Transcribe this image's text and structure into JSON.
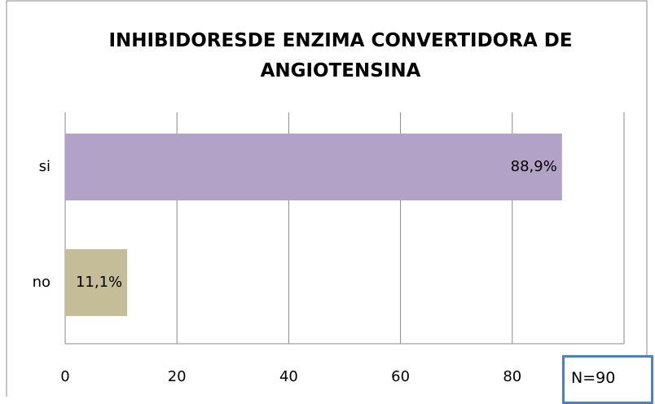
{
  "chart_data": {
    "type": "hbar",
    "title": "INHIBIDORESDE ENZIMA CONVERTIDORA DE ANGIOTENSINA",
    "categories": [
      "si",
      "no"
    ],
    "values": [
      88.9,
      11.1
    ],
    "value_labels": [
      "88,9%",
      "11,1%"
    ],
    "colors": [
      "#b3a2c7",
      "#c4bd97"
    ],
    "xlim": [
      0,
      100
    ],
    "xticks": [
      0,
      20,
      40,
      60,
      80
    ],
    "grid": true,
    "annotation": "N=90"
  }
}
